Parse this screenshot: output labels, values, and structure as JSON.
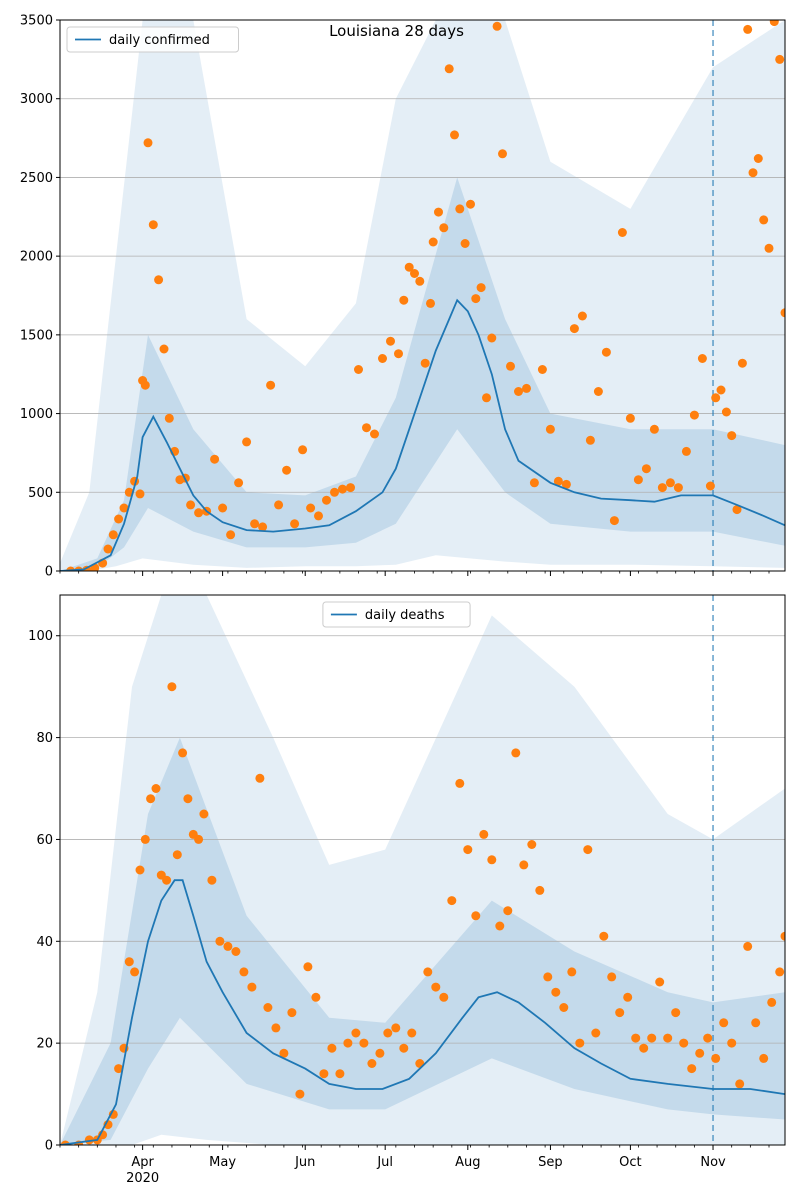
{
  "chart_data": [
    {
      "type": "line",
      "title": "Louisiana 28 days",
      "legend": "daily confirmed",
      "legend_position": "top-left",
      "grid": "y",
      "ylim": [
        0,
        3500
      ],
      "yticks": [
        0,
        500,
        1000,
        1500,
        2000,
        2500,
        3000,
        3500
      ],
      "xlim": [
        "2020-03-01",
        "2020-11-28"
      ],
      "forecast_start": "2020-11-01",
      "colors": {
        "line": "#1f77b4",
        "points": "#ff7f0e",
        "band": "#1f77b4",
        "grid": "#b0b0b0"
      },
      "series_line": {
        "x": [
          "2020-03-01",
          "2020-03-10",
          "2020-03-20",
          "2020-03-25",
          "2020-03-30",
          "2020-04-01",
          "2020-04-05",
          "2020-04-10",
          "2020-04-15",
          "2020-04-20",
          "2020-04-25",
          "2020-05-01",
          "2020-05-10",
          "2020-05-20",
          "2020-06-01",
          "2020-06-10",
          "2020-06-20",
          "2020-06-30",
          "2020-07-05",
          "2020-07-10",
          "2020-07-15",
          "2020-07-20",
          "2020-07-25",
          "2020-07-28",
          "2020-08-01",
          "2020-08-05",
          "2020-08-10",
          "2020-08-15",
          "2020-08-20",
          "2020-09-01",
          "2020-09-10",
          "2020-09-20",
          "2020-10-01",
          "2020-10-10",
          "2020-10-20",
          "2020-11-01",
          "2020-11-10",
          "2020-11-20",
          "2020-11-28"
        ],
        "y": [
          0,
          10,
          100,
          300,
          600,
          850,
          980,
          820,
          650,
          480,
          380,
          310,
          260,
          250,
          270,
          290,
          380,
          500,
          650,
          900,
          1150,
          1400,
          1600,
          1720,
          1650,
          1500,
          1250,
          900,
          700,
          560,
          500,
          460,
          450,
          440,
          480,
          480,
          420,
          350,
          290
        ]
      },
      "band_inner": {
        "x": [
          "2020-03-01",
          "2020-03-15",
          "2020-03-25",
          "2020-04-03",
          "2020-04-20",
          "2020-05-10",
          "2020-06-01",
          "2020-06-20",
          "2020-07-05",
          "2020-07-28",
          "2020-08-15",
          "2020-09-01",
          "2020-10-01",
          "2020-11-01",
          "2020-11-28"
        ],
        "lo": [
          0,
          20,
          150,
          400,
          250,
          150,
          150,
          180,
          300,
          900,
          500,
          300,
          250,
          250,
          160
        ],
        "hi": [
          0,
          80,
          450,
          1500,
          900,
          500,
          480,
          600,
          1100,
          2500,
          1600,
          1000,
          900,
          900,
          800
        ]
      },
      "band_outer": {
        "x": [
          "2020-03-01",
          "2020-03-12",
          "2020-03-22",
          "2020-04-01",
          "2020-04-20",
          "2020-05-10",
          "2020-06-01",
          "2020-06-20",
          "2020-07-05",
          "2020-07-20",
          "2020-08-15",
          "2020-09-01",
          "2020-10-01",
          "2020-11-01",
          "2020-11-28"
        ],
        "lo": [
          0,
          0,
          30,
          80,
          40,
          20,
          30,
          30,
          40,
          100,
          60,
          40,
          40,
          30,
          20
        ],
        "hi": [
          50,
          500,
          2000,
          3500,
          3500,
          1600,
          1300,
          1700,
          3000,
          3500,
          3500,
          2600,
          2300,
          3200,
          3500
        ]
      },
      "points": {
        "x": [
          "2020-03-05",
          "2020-03-08",
          "2020-03-11",
          "2020-03-14",
          "2020-03-17",
          "2020-03-19",
          "2020-03-21",
          "2020-03-23",
          "2020-03-25",
          "2020-03-27",
          "2020-03-29",
          "2020-03-31",
          "2020-04-01",
          "2020-04-02",
          "2020-04-03",
          "2020-04-05",
          "2020-04-07",
          "2020-04-09",
          "2020-04-11",
          "2020-04-13",
          "2020-04-15",
          "2020-04-17",
          "2020-04-19",
          "2020-04-22",
          "2020-04-25",
          "2020-04-28",
          "2020-05-01",
          "2020-05-04",
          "2020-05-07",
          "2020-05-10",
          "2020-05-13",
          "2020-05-16",
          "2020-05-19",
          "2020-05-22",
          "2020-05-25",
          "2020-05-28",
          "2020-05-31",
          "2020-06-03",
          "2020-06-06",
          "2020-06-09",
          "2020-06-12",
          "2020-06-15",
          "2020-06-18",
          "2020-06-21",
          "2020-06-24",
          "2020-06-27",
          "2020-06-30",
          "2020-07-03",
          "2020-07-06",
          "2020-07-08",
          "2020-07-10",
          "2020-07-12",
          "2020-07-14",
          "2020-07-16",
          "2020-07-18",
          "2020-07-19",
          "2020-07-21",
          "2020-07-23",
          "2020-07-25",
          "2020-07-27",
          "2020-07-29",
          "2020-07-31",
          "2020-08-02",
          "2020-08-04",
          "2020-08-06",
          "2020-08-08",
          "2020-08-10",
          "2020-08-12",
          "2020-08-14",
          "2020-08-17",
          "2020-08-20",
          "2020-08-23",
          "2020-08-26",
          "2020-08-29",
          "2020-09-01",
          "2020-09-04",
          "2020-09-07",
          "2020-09-10",
          "2020-09-13",
          "2020-09-16",
          "2020-09-19",
          "2020-09-22",
          "2020-09-25",
          "2020-09-28",
          "2020-10-01",
          "2020-10-04",
          "2020-10-07",
          "2020-10-10",
          "2020-10-13",
          "2020-10-16",
          "2020-10-19",
          "2020-10-22",
          "2020-10-25",
          "2020-10-28",
          "2020-10-31",
          "2020-11-02",
          "2020-11-04",
          "2020-11-06",
          "2020-11-08",
          "2020-11-10",
          "2020-11-12",
          "2020-11-14",
          "2020-11-16",
          "2020-11-18",
          "2020-11-20",
          "2020-11-22",
          "2020-11-24",
          "2020-11-26",
          "2020-11-28"
        ],
        "y": [
          0,
          0,
          5,
          20,
          50,
          140,
          230,
          330,
          400,
          500,
          570,
          490,
          1210,
          1180,
          2720,
          2200,
          1850,
          1410,
          970,
          760,
          580,
          590,
          420,
          370,
          380,
          710,
          400,
          230,
          560,
          820,
          300,
          280,
          1180,
          420,
          640,
          300,
          770,
          400,
          350,
          450,
          500,
          520,
          530,
          1280,
          910,
          870,
          1350,
          1460,
          1380,
          1720,
          1930,
          1890,
          1840,
          1320,
          1700,
          2090,
          2280,
          2180,
          3190,
          2770,
          2300,
          2080,
          2330,
          1730,
          1800,
          1100,
          1480,
          3460,
          2650,
          1300,
          1140,
          1160,
          560,
          1280,
          900,
          570,
          550,
          1540,
          1620,
          830,
          1140,
          1390,
          320,
          2150,
          970,
          580,
          650,
          900,
          530,
          560,
          530,
          760,
          990,
          1350,
          540,
          1100,
          1150,
          1010,
          860,
          390,
          1320,
          3440,
          2530,
          2620,
          2230,
          2050,
          3490,
          3250,
          1640
        ]
      }
    },
    {
      "type": "line",
      "legend": "daily deaths",
      "legend_position": "top-center",
      "grid": "y",
      "ylim": [
        0,
        108
      ],
      "yticks": [
        0,
        20,
        40,
        60,
        80,
        100
      ],
      "xlim": [
        "2020-03-01",
        "2020-11-28"
      ],
      "forecast_start": "2020-11-01",
      "xticks": [
        "Apr",
        "May",
        "Jun",
        "Jul",
        "Aug",
        "Sep",
        "Oct",
        "Nov"
      ],
      "xtick_dates": [
        "2020-04-01",
        "2020-05-01",
        "2020-06-01",
        "2020-07-01",
        "2020-08-01",
        "2020-09-01",
        "2020-10-01",
        "2020-11-01"
      ],
      "year_label": "2020",
      "colors": {
        "line": "#1f77b4",
        "points": "#ff7f0e",
        "band": "#1f77b4",
        "grid": "#b0b0b0"
      },
      "series_line": {
        "x": [
          "2020-03-01",
          "2020-03-15",
          "2020-03-22",
          "2020-03-28",
          "2020-04-03",
          "2020-04-08",
          "2020-04-13",
          "2020-04-16",
          "2020-04-20",
          "2020-04-25",
          "2020-05-01",
          "2020-05-10",
          "2020-05-20",
          "2020-06-01",
          "2020-06-10",
          "2020-06-20",
          "2020-06-30",
          "2020-07-10",
          "2020-07-20",
          "2020-07-30",
          "2020-08-05",
          "2020-08-12",
          "2020-08-20",
          "2020-08-30",
          "2020-09-10",
          "2020-09-20",
          "2020-10-01",
          "2020-10-15",
          "2020-11-01",
          "2020-11-15",
          "2020-11-28"
        ],
        "y": [
          0,
          1,
          8,
          25,
          40,
          48,
          52,
          52,
          45,
          36,
          30,
          22,
          18,
          15,
          12,
          11,
          11,
          13,
          18,
          25,
          29,
          30,
          28,
          24,
          19,
          16,
          13,
          12,
          11,
          11,
          10
        ]
      },
      "band_inner": {
        "x": [
          "2020-03-01",
          "2020-03-20",
          "2020-04-03",
          "2020-04-15",
          "2020-05-10",
          "2020-06-10",
          "2020-07-01",
          "2020-08-10",
          "2020-09-10",
          "2020-10-15",
          "2020-11-01",
          "2020-11-28"
        ],
        "lo": [
          0,
          1,
          15,
          25,
          12,
          7,
          7,
          17,
          11,
          7,
          6,
          5
        ],
        "hi": [
          0,
          20,
          65,
          80,
          45,
          25,
          24,
          48,
          38,
          30,
          28,
          30
        ]
      },
      "band_outer": {
        "x": [
          "2020-03-01",
          "2020-03-15",
          "2020-03-28",
          "2020-04-08",
          "2020-04-25",
          "2020-05-20",
          "2020-06-10",
          "2020-07-01",
          "2020-08-10",
          "2020-09-10",
          "2020-10-15",
          "2020-11-01",
          "2020-11-28"
        ],
        "lo": [
          0,
          0,
          0,
          2,
          1,
          0,
          0,
          0,
          0,
          0,
          0,
          0,
          0
        ],
        "hi": [
          0,
          30,
          90,
          108,
          108,
          80,
          55,
          58,
          104,
          90,
          65,
          60,
          70
        ]
      },
      "points": {
        "x": [
          "2020-03-03",
          "2020-03-08",
          "2020-03-12",
          "2020-03-15",
          "2020-03-17",
          "2020-03-19",
          "2020-03-21",
          "2020-03-23",
          "2020-03-25",
          "2020-03-27",
          "2020-03-29",
          "2020-03-31",
          "2020-04-02",
          "2020-04-04",
          "2020-04-06",
          "2020-04-08",
          "2020-04-10",
          "2020-04-12",
          "2020-04-14",
          "2020-04-16",
          "2020-04-18",
          "2020-04-20",
          "2020-04-22",
          "2020-04-24",
          "2020-04-27",
          "2020-04-30",
          "2020-05-03",
          "2020-05-06",
          "2020-05-09",
          "2020-05-12",
          "2020-05-15",
          "2020-05-18",
          "2020-05-21",
          "2020-05-24",
          "2020-05-27",
          "2020-05-30",
          "2020-06-02",
          "2020-06-05",
          "2020-06-08",
          "2020-06-11",
          "2020-06-14",
          "2020-06-17",
          "2020-06-20",
          "2020-06-23",
          "2020-06-26",
          "2020-06-29",
          "2020-07-02",
          "2020-07-05",
          "2020-07-08",
          "2020-07-11",
          "2020-07-14",
          "2020-07-17",
          "2020-07-20",
          "2020-07-23",
          "2020-07-26",
          "2020-07-29",
          "2020-08-01",
          "2020-08-04",
          "2020-08-07",
          "2020-08-10",
          "2020-08-13",
          "2020-08-16",
          "2020-08-19",
          "2020-08-22",
          "2020-08-25",
          "2020-08-28",
          "2020-08-31",
          "2020-09-03",
          "2020-09-06",
          "2020-09-09",
          "2020-09-12",
          "2020-09-15",
          "2020-09-18",
          "2020-09-21",
          "2020-09-24",
          "2020-09-27",
          "2020-09-30",
          "2020-10-03",
          "2020-10-06",
          "2020-10-09",
          "2020-10-12",
          "2020-10-15",
          "2020-10-18",
          "2020-10-21",
          "2020-10-24",
          "2020-10-27",
          "2020-10-30",
          "2020-11-02",
          "2020-11-05",
          "2020-11-08",
          "2020-11-11",
          "2020-11-14",
          "2020-11-17",
          "2020-11-20",
          "2020-11-23",
          "2020-11-26",
          "2020-11-28"
        ],
        "y": [
          0,
          0,
          1,
          1,
          2,
          4,
          6,
          15,
          19,
          36,
          34,
          54,
          60,
          68,
          70,
          53,
          52,
          90,
          57,
          77,
          68,
          61,
          60,
          65,
          52,
          40,
          39,
          38,
          34,
          31,
          72,
          27,
          23,
          18,
          26,
          10,
          35,
          29,
          14,
          19,
          14,
          20,
          22,
          20,
          16,
          18,
          22,
          23,
          19,
          22,
          16,
          34,
          31,
          29,
          48,
          71,
          58,
          45,
          61,
          56,
          43,
          46,
          77,
          55,
          59,
          50,
          33,
          30,
          27,
          34,
          20,
          58,
          22,
          41,
          33,
          26,
          29,
          21,
          19,
          21,
          32,
          21,
          26,
          20,
          15,
          18,
          21,
          17,
          24,
          20,
          12,
          39,
          24,
          17,
          28,
          34,
          41
        ]
      }
    }
  ]
}
